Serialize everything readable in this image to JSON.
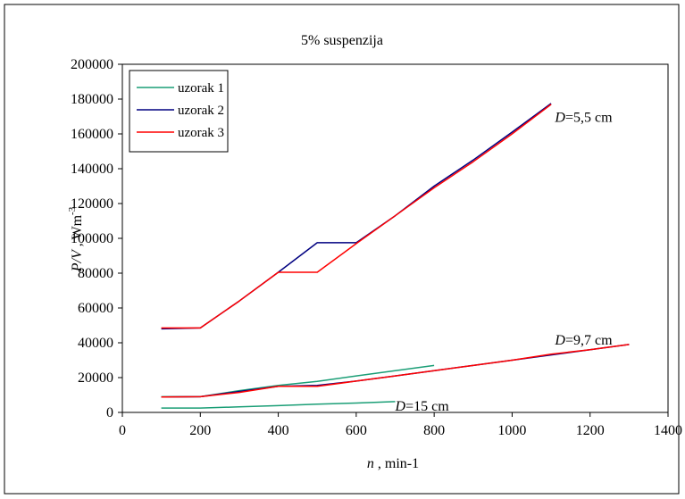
{
  "chart_data": {
    "type": "line",
    "title": "5% suspenzija",
    "xlabel": {
      "var": "n",
      "rest": " , min-1"
    },
    "ylabel": {
      "var": "P/V",
      "rest": " , Wm",
      "sup": "-3"
    },
    "xlim": [
      0,
      1400
    ],
    "ylim": [
      0,
      200000
    ],
    "xticks": [
      0,
      200,
      400,
      600,
      800,
      1000,
      1200,
      1400
    ],
    "yticks": [
      0,
      20000,
      40000,
      60000,
      80000,
      100000,
      120000,
      140000,
      160000,
      180000,
      200000
    ],
    "grid": false,
    "legend_position": "top-left",
    "series": [
      {
        "name": "uzorak 1",
        "color": "#1a9e76",
        "segments": [
          {
            "x": [
              100,
              200,
              300,
              400,
              500,
              600,
              700
            ],
            "y": [
              2500,
              2500,
              3200,
              3900,
              4700,
              5400,
              6200
            ]
          },
          {
            "x": [
              100,
              200,
              300,
              400,
              500,
              600,
              700,
              800
            ],
            "y": [
              9000,
              9000,
              12500,
              15500,
              17800,
              21000,
              24000,
              27000
            ]
          }
        ]
      },
      {
        "name": "uzorak 2",
        "color": "#000080",
        "segments": [
          {
            "x": [
              100,
              200,
              300,
              400,
              500,
              600,
              700,
              800,
              900,
              1000,
              1100
            ],
            "y": [
              48000,
              48500,
              64000,
              80500,
              97500,
              97500,
              113000,
              130000,
              145000,
              161000,
              177500
            ]
          },
          {
            "x": [
              100,
              200,
              300,
              400,
              500,
              600,
              700,
              800,
              900,
              1000,
              1100,
              1200,
              1300
            ],
            "y": [
              8800,
              9000,
              12000,
              15000,
              15500,
              18000,
              21000,
              24000,
              27000,
              30000,
              33000,
              36000,
              39000
            ]
          }
        ]
      },
      {
        "name": "uzorak 3",
        "color": "#ff0000",
        "segments": [
          {
            "x": [
              100,
              200,
              300,
              400,
              500,
              600,
              700,
              800,
              900,
              1000,
              1100
            ],
            "y": [
              48500,
              48500,
              64000,
              80500,
              80500,
              97000,
              113000,
              129000,
              144000,
              160000,
              177000
            ]
          },
          {
            "x": [
              100,
              200,
              300,
              400,
              500,
              600,
              700,
              800,
              900,
              1000,
              1100,
              1200,
              1300
            ],
            "y": [
              8800,
              9000,
              11500,
              15000,
              15000,
              18000,
              21000,
              24000,
              27000,
              30000,
              33500,
              36000,
              39000
            ]
          }
        ]
      }
    ],
    "annotations": [
      {
        "var": "D",
        "text": "=5,5 cm",
        "x": 1110,
        "y": 170000
      },
      {
        "var": "D",
        "text": "=9,7 cm",
        "x": 1110,
        "y": 42000
      },
      {
        "var": "D",
        "text": "=15 cm",
        "x": 700,
        "y": 4000
      }
    ]
  }
}
